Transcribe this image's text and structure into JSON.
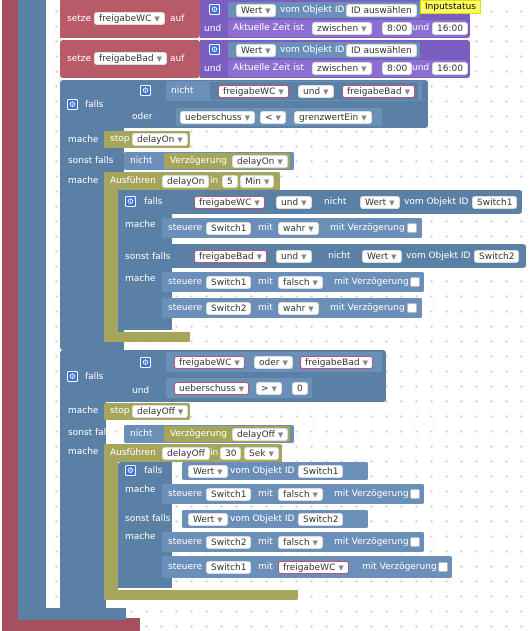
{
  "comment": "Inputstatus",
  "set_wc": {
    "label": "setze",
    "var": "freigabeWC",
    "to": "auf",
    "value": "Wert",
    "from": "vom Objekt ID",
    "object": "ID auswählen",
    "and": "und",
    "time_label": "Aktuelle Zeit ist",
    "op": "zwischen",
    "t1": "8:00",
    "t2": "16:00"
  },
  "set_bad": {
    "label": "setze",
    "var": "freigabeBad",
    "to": "auf",
    "value": "Wert",
    "from": "vom Objekt ID",
    "object": "ID auswählen",
    "and": "und",
    "time_label": "Aktuelle Zeit ist",
    "op": "zwischen",
    "t1": "8:00",
    "t2": "16:00"
  },
  "if1": {
    "falls": "falls",
    "not": "nicht",
    "a": "freigabeWC",
    "and": "und",
    "b": "freigabeBad",
    "or": "oder",
    "surplus": "ueberschuss",
    "lt": "<",
    "limit": "grenzwertEin",
    "mache": "mache",
    "stop": "stop",
    "stop_arg": "delayOn",
    "elseif": "sonst falls",
    "not2": "nicht",
    "delay": "Verzögerung",
    "delay_arg": "delayOn",
    "mache2": "mache",
    "run": "Ausführen",
    "run_arg": "delayOn",
    "in": "in",
    "num": "5",
    "unit": "Min"
  },
  "inner1": {
    "falls": "falls",
    "a": "freigabeWC",
    "and": "und",
    "not": "nicht",
    "value": "Wert",
    "from": "vom Objekt ID",
    "obj": "Switch1",
    "mache": "mache",
    "ctrl": "steuere",
    "s1": "Switch1",
    "with": "mit",
    "v1": "wahr",
    "delay": "mit Verzögerung",
    "elseif": "sonst falls",
    "b": "freigabeBad",
    "and2": "und",
    "not2": "nicht",
    "value2": "Wert",
    "from2": "vom Objekt ID",
    "obj2": "Switch2",
    "mache2": "mache",
    "ctrl2": "steuere",
    "s2a": "Switch1",
    "with2": "mit",
    "v2": "falsch",
    "delay2": "mit Verzögerung",
    "ctrl3": "steuere",
    "s3": "Switch2",
    "with3": "mit",
    "v3": "wahr",
    "delay3": "mit Verzögerung"
  },
  "if2": {
    "falls": "falls",
    "a": "freigabeWC",
    "or": "oder",
    "b": "freigabeBad",
    "and": "und",
    "surplus": "ueberschuss",
    "gt": ">",
    "zero": "0",
    "mache": "mache",
    "stop": "stop",
    "stop_arg": "delayOff",
    "elseif": "sonst falls",
    "not": "nicht",
    "delay": "Verzögerung",
    "delay_arg": "delayOff",
    "mache2": "mache",
    "run": "Ausführen",
    "run_arg": "delayOff",
    "in": "in",
    "num": "30",
    "unit": "Sek"
  },
  "inner2": {
    "falls": "falls",
    "value": "Wert",
    "from": "vom Objekt ID",
    "obj": "Switch1",
    "mache": "mache",
    "ctrl": "steuere",
    "s1": "Switch1",
    "with": "mit",
    "v1": "falsch",
    "delay": "mit Verzögerung",
    "elseif": "sonst falls",
    "value2": "Wert",
    "from2": "vom Objekt ID",
    "obj2": "Switch2",
    "mache2": "mache",
    "ctrl2": "steuere",
    "s2": "Switch2",
    "with2": "mit",
    "v2": "falsch",
    "delay2": "mit Verzögerung",
    "ctrl3": "steuere",
    "s3": "Switch1",
    "with3": "mit",
    "v3": "freigabeWC",
    "delay3": "mit Verzögerung"
  }
}
